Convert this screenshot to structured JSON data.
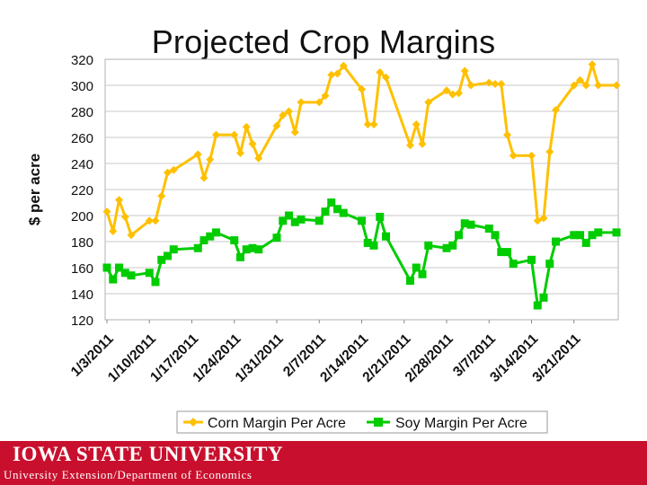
{
  "slide": {
    "title": "Projected Crop Margins",
    "footer_university": "IOWA STATE UNIVERSITY",
    "footer_department": "University Extension/Department of Economics"
  },
  "colors": {
    "corn": "#ffc000",
    "soy": "#00cc00",
    "footer": "#c8102e",
    "grid": "#c8c8c8"
  },
  "chart_data": {
    "type": "line",
    "title": "Projected Crop Margins",
    "xlabel": "",
    "ylabel": "$ per acre",
    "ylim": [
      120,
      320
    ],
    "yticks": [
      120,
      140,
      160,
      180,
      200,
      220,
      240,
      260,
      280,
      300,
      320
    ],
    "grid": true,
    "legend": "bottom",
    "x_range": [
      "1/3/2011",
      "3/28/2011"
    ],
    "xticks": [
      "1/3/2011",
      "1/10/2011",
      "1/17/2011",
      "1/24/2011",
      "1/31/2011",
      "2/7/2011",
      "2/14/2011",
      "2/21/2011",
      "2/28/2011",
      "3/7/2011",
      "3/14/2011",
      "3/21/2011"
    ],
    "series": [
      {
        "name": "Corn Margin Per Acre",
        "x": [
          "1/3/2011",
          "1/4/2011",
          "1/5/2011",
          "1/6/2011",
          "1/7/2011",
          "1/10/2011",
          "1/11/2011",
          "1/12/2011",
          "1/13/2011",
          "1/14/2011",
          "1/18/2011",
          "1/19/2011",
          "1/20/2011",
          "1/21/2011",
          "1/24/2011",
          "1/25/2011",
          "1/26/2011",
          "1/27/2011",
          "1/28/2011",
          "1/31/2011",
          "2/1/2011",
          "2/2/2011",
          "2/3/2011",
          "2/4/2011",
          "2/7/2011",
          "2/8/2011",
          "2/9/2011",
          "2/10/2011",
          "2/11/2011",
          "2/14/2011",
          "2/15/2011",
          "2/16/2011",
          "2/17/2011",
          "2/18/2011",
          "2/22/2011",
          "2/23/2011",
          "2/24/2011",
          "2/25/2011",
          "2/28/2011",
          "3/1/2011",
          "3/2/2011",
          "3/3/2011",
          "3/4/2011",
          "3/7/2011",
          "3/8/2011",
          "3/9/2011",
          "3/10/2011",
          "3/11/2011",
          "3/14/2011",
          "3/15/2011",
          "3/16/2011",
          "3/17/2011",
          "3/18/2011",
          "3/21/2011",
          "3/22/2011",
          "3/23/2011",
          "3/24/2011",
          "3/25/2011",
          "3/28/2011"
        ],
        "values": [
          203,
          188,
          212,
          199,
          185,
          196,
          196,
          215,
          233,
          235,
          247,
          229,
          243,
          262,
          262,
          248,
          268,
          255,
          244,
          269,
          277,
          280,
          264,
          287,
          287,
          292,
          308,
          309,
          315,
          297,
          270,
          270,
          310,
          306,
          254,
          270,
          255,
          287,
          296,
          293,
          294,
          311,
          300,
          302,
          301,
          301,
          262,
          246,
          246,
          196,
          198,
          249,
          281,
          300,
          304,
          300,
          316,
          300,
          300
        ]
      },
      {
        "name": "Soy Margin Per Acre",
        "x": [
          "1/3/2011",
          "1/4/2011",
          "1/5/2011",
          "1/6/2011",
          "1/7/2011",
          "1/10/2011",
          "1/11/2011",
          "1/12/2011",
          "1/13/2011",
          "1/14/2011",
          "1/18/2011",
          "1/19/2011",
          "1/20/2011",
          "1/21/2011",
          "1/24/2011",
          "1/25/2011",
          "1/26/2011",
          "1/27/2011",
          "1/28/2011",
          "1/31/2011",
          "2/1/2011",
          "2/2/2011",
          "2/3/2011",
          "2/4/2011",
          "2/7/2011",
          "2/8/2011",
          "2/9/2011",
          "2/10/2011",
          "2/11/2011",
          "2/14/2011",
          "2/15/2011",
          "2/16/2011",
          "2/17/2011",
          "2/18/2011",
          "2/22/2011",
          "2/23/2011",
          "2/24/2011",
          "2/25/2011",
          "2/28/2011",
          "3/1/2011",
          "3/2/2011",
          "3/3/2011",
          "3/4/2011",
          "3/7/2011",
          "3/8/2011",
          "3/9/2011",
          "3/10/2011",
          "3/11/2011",
          "3/14/2011",
          "3/15/2011",
          "3/16/2011",
          "3/17/2011",
          "3/18/2011",
          "3/21/2011",
          "3/22/2011",
          "3/23/2011",
          "3/24/2011",
          "3/25/2011",
          "3/28/2011"
        ],
        "values": [
          160,
          151,
          160,
          156,
          154,
          156,
          149,
          166,
          169,
          174,
          175,
          181,
          184,
          187,
          181,
          168,
          174,
          175,
          174,
          183,
          196,
          200,
          195,
          197,
          196,
          203,
          210,
          205,
          202,
          196,
          179,
          177,
          199,
          184,
          150,
          160,
          155,
          177,
          175,
          177,
          185,
          194,
          193,
          190,
          185,
          172,
          172,
          163,
          166,
          131,
          137,
          163,
          180,
          185,
          185,
          179,
          185,
          187,
          187
        ]
      }
    ]
  }
}
